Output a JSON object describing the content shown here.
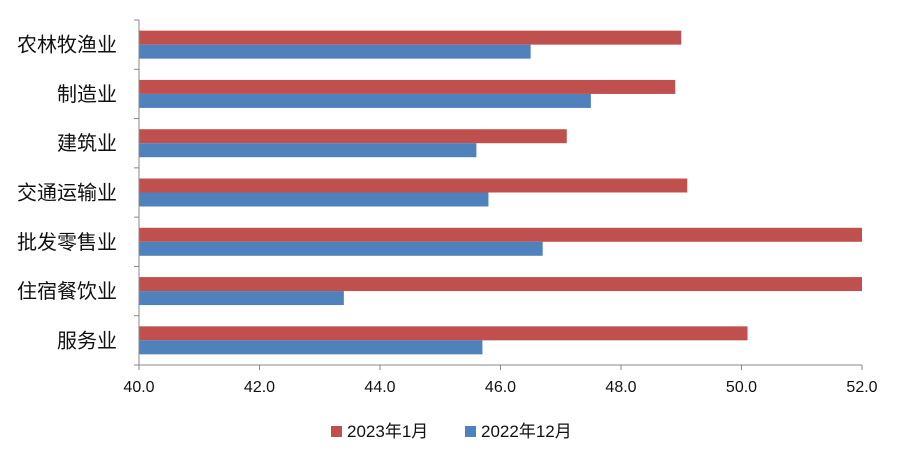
{
  "chart_data": {
    "type": "bar",
    "orientation": "horizontal",
    "categories": [
      "农林牧渔业",
      "制造业",
      "建筑业",
      "交通运输业",
      "批发零售业",
      "住宿餐饮业",
      "服务业"
    ],
    "series": [
      {
        "name": "2023年1月",
        "color": "#C0504D",
        "values": [
          49.0,
          48.9,
          47.1,
          49.1,
          52.0,
          52.0,
          50.1
        ]
      },
      {
        "name": "2022年12月",
        "color": "#4F81BD",
        "values": [
          46.5,
          47.5,
          45.6,
          45.8,
          46.7,
          43.4,
          45.7
        ]
      }
    ],
    "xlim": [
      40.0,
      52.0
    ],
    "xticks": [
      "40.0",
      "42.0",
      "44.0",
      "46.0",
      "48.0",
      "50.0",
      "52.0"
    ],
    "title": "",
    "xlabel": "",
    "ylabel": "",
    "grid": false,
    "legend_position": "bottom"
  }
}
